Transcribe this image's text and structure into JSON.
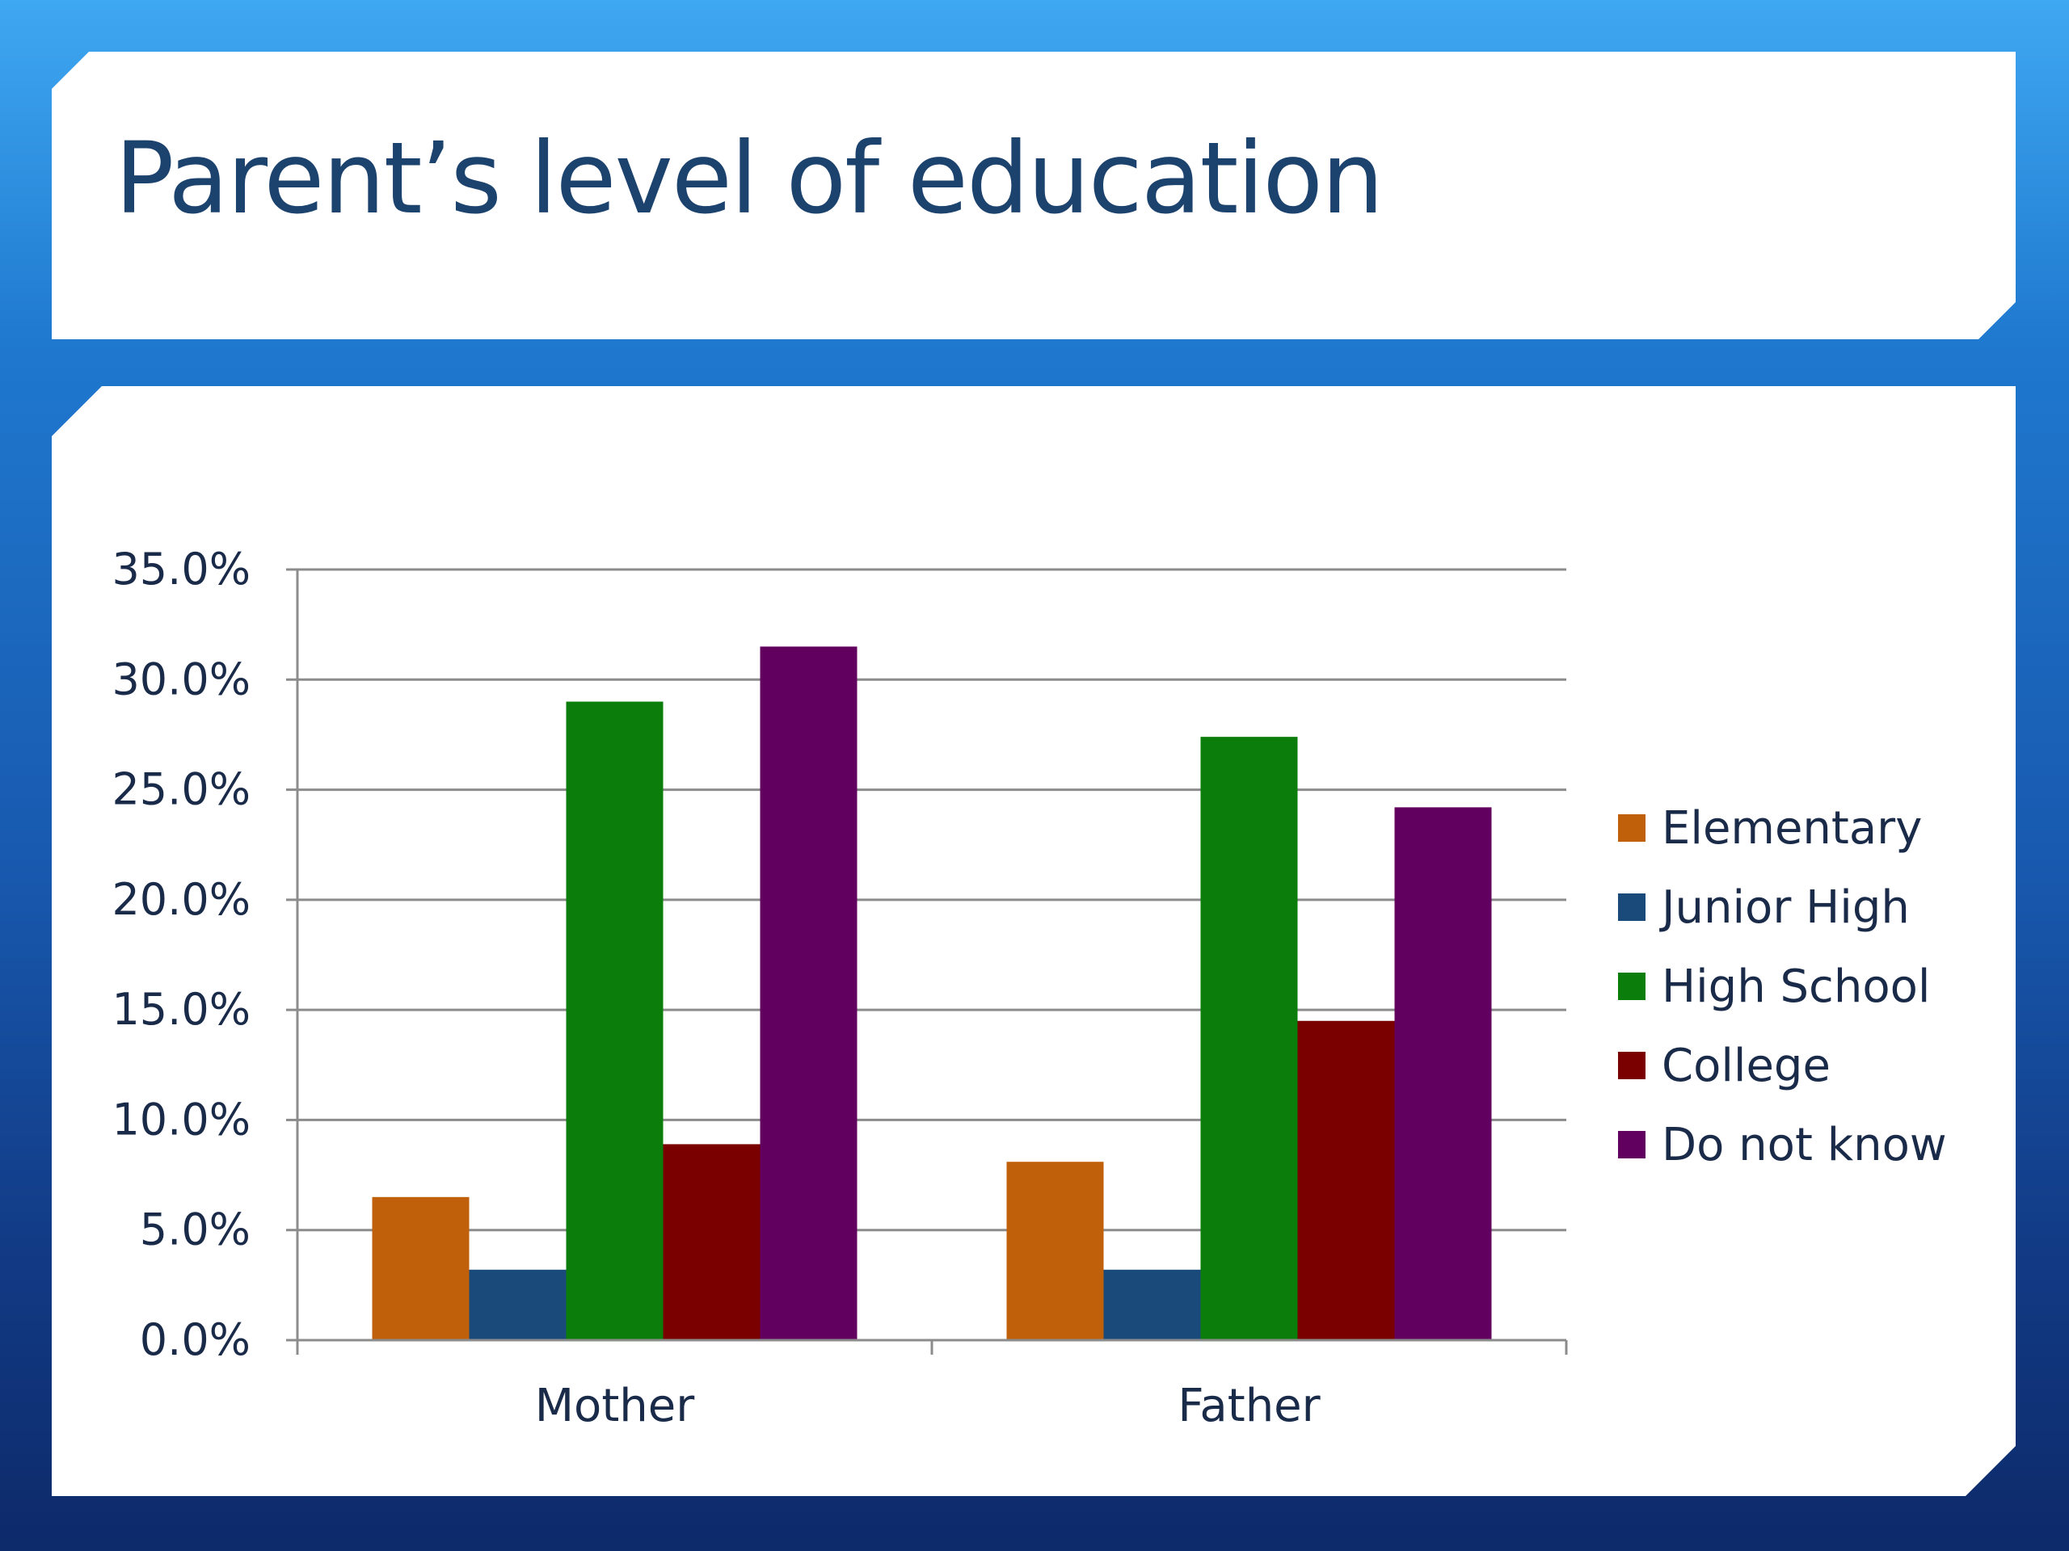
{
  "slide": {
    "title": "Parent’s level of education"
  },
  "chart_data": {
    "type": "bar",
    "title": "",
    "xlabel": "",
    "ylabel": "",
    "categories": [
      "Mother",
      "Father"
    ],
    "series": [
      {
        "name": "Elementary",
        "color": "#c0600a",
        "values": [
          6.5,
          8.1
        ]
      },
      {
        "name": "Junior High",
        "color": "#1a4a7a",
        "values": [
          3.2,
          3.2
        ]
      },
      {
        "name": "High School",
        "color": "#0a7d0a",
        "values": [
          29.0,
          27.4
        ]
      },
      {
        "name": "College",
        "color": "#7a0000",
        "values": [
          8.9,
          14.5
        ]
      },
      {
        "name": "Do not know",
        "color": "#620060",
        "values": [
          31.5,
          24.2
        ]
      }
    ],
    "ylim": [
      0,
      35
    ],
    "yticks": [
      0,
      5,
      10,
      15,
      20,
      25,
      30,
      35
    ],
    "ytick_labels": [
      "0.0%",
      "5.0%",
      "10.0%",
      "15.0%",
      "20.0%",
      "25.0%",
      "30.0%",
      "35.0%"
    ],
    "grid": true,
    "legend_position": "right"
  }
}
